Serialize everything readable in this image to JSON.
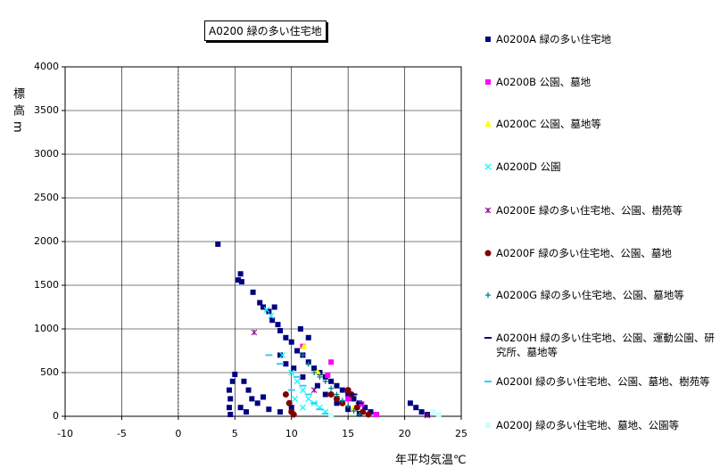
{
  "chart_data": {
    "type": "scatter",
    "title": "A0200 緑の多い住宅地",
    "x_label": "年平均気温℃",
    "y_label": "標高m",
    "xlim": [
      -10,
      25
    ],
    "xticks": [
      -10,
      -5,
      0,
      5,
      10,
      15,
      20,
      25
    ],
    "ylim": [
      0,
      4000
    ],
    "yticks": [
      0,
      500,
      1000,
      1500,
      2000,
      2500,
      3000,
      3500,
      4000
    ],
    "grid": true,
    "legend": "right",
    "series": [
      {
        "name": "A0200A 緑の多い住宅地",
        "color": "#000080",
        "marker": "square",
        "x": [
          3.5,
          5.5,
          5.3,
          5.6,
          6.6,
          7.2,
          7.5,
          8,
          8.3,
          8.8,
          9,
          9.5,
          10,
          10.5,
          11,
          11.5,
          12,
          12.5,
          13,
          13.5,
          14,
          14.5,
          15,
          15.5,
          16,
          16.5,
          17,
          17.5,
          5,
          4.8,
          4.5,
          4.6,
          4.5,
          4.6,
          5.5,
          6,
          6.5,
          7,
          8,
          9,
          10,
          20.5,
          21,
          21.5,
          22,
          9,
          9.5,
          10.2,
          11,
          12.3,
          13,
          14,
          15,
          16,
          5.8,
          6.2,
          7.5,
          11.5,
          10.8,
          8.5
        ],
        "y": [
          1970,
          1630,
          1560,
          1540,
          1420,
          1300,
          1250,
          1200,
          1100,
          1050,
          980,
          900,
          850,
          750,
          700,
          620,
          550,
          500,
          450,
          400,
          350,
          300,
          250,
          200,
          150,
          100,
          50,
          20,
          480,
          400,
          300,
          200,
          100,
          20,
          100,
          50,
          200,
          150,
          80,
          50,
          100,
          150,
          100,
          50,
          20,
          700,
          600,
          550,
          450,
          350,
          250,
          150,
          80,
          30,
          400,
          300,
          220,
          900,
          1000,
          1250
        ]
      },
      {
        "name": "A0200B 公園、墓地",
        "color": "#ff00ff",
        "marker": "square",
        "x": [
          13.5,
          13.2,
          15,
          16.2,
          17.5,
          11
        ],
        "y": [
          620,
          470,
          200,
          140,
          20,
          800
        ]
      },
      {
        "name": "A0200C 公園、墓地等",
        "color": "#ffff00",
        "marker": "triangle",
        "x": [
          11.1,
          12.3,
          15.5
        ],
        "y": [
          800,
          510,
          100
        ]
      },
      {
        "name": "A0200D 公園",
        "color": "#00ffff",
        "marker": "x",
        "x": [
          7.8,
          8.2,
          9.2,
          10,
          10.5,
          11,
          11.5,
          12,
          12.5,
          13,
          10.3,
          11
        ],
        "y": [
          1220,
          1150,
          700,
          500,
          400,
          300,
          200,
          150,
          100,
          50,
          200,
          100
        ]
      },
      {
        "name": "A0200E 緑の多い住宅地、公園、樹苑等",
        "color": "#800080",
        "marker": "star",
        "x": [
          6.7,
          12,
          14,
          22
        ],
        "y": [
          960,
          300,
          200,
          10
        ]
      },
      {
        "name": "A0200F 緑の多い住宅地、公園、墓地",
        "color": "#800000",
        "marker": "circle",
        "x": [
          9.5,
          9.8,
          10,
          13.5,
          14,
          14.5,
          15,
          15.3,
          15.8,
          16.3,
          16.8,
          10.2
        ],
        "y": [
          250,
          150,
          50,
          250,
          200,
          150,
          300,
          250,
          100,
          50,
          20,
          20
        ]
      },
      {
        "name": "A0200G 緑の多い住宅地、公園、墓地等",
        "color": "#008080",
        "marker": "plus",
        "x": [
          11,
          11.5,
          12,
          12.5,
          13,
          13.5,
          14,
          14.5,
          15,
          15.5,
          16
        ],
        "y": [
          700,
          600,
          500,
          450,
          400,
          320,
          250,
          180,
          120,
          60,
          20
        ]
      },
      {
        "name": "A0200H 緑の多い住宅地、公園、運動公園、研究所、墓地等",
        "color": "#000080",
        "marker": "dash",
        "x": [
          15.5,
          16
        ],
        "y": [
          250,
          150
        ]
      },
      {
        "name": "A0200I 緑の多い住宅地、公園、墓地、樹苑等",
        "color": "#33ccff",
        "marker": "dash",
        "x": [
          8,
          9,
          10.5,
          11,
          11.5,
          12,
          12.5,
          13,
          10
        ],
        "y": [
          700,
          600,
          450,
          350,
          250,
          150,
          80,
          30,
          300
        ]
      },
      {
        "name": "A0200J 緑の多い住宅地、墓地、公園等",
        "color": "#ccffff",
        "marker": "square",
        "x": [
          23,
          22.5,
          13.5
        ],
        "y": [
          20,
          50,
          10
        ]
      }
    ]
  }
}
